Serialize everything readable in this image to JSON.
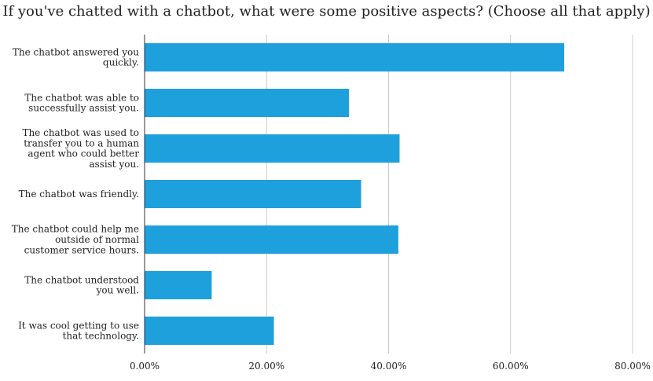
{
  "chart_data": {
    "type": "bar",
    "orientation": "horizontal",
    "title": "If you've chatted with a chatbot, what were some positive aspects? (Choose all that apply)",
    "categories": [
      [
        "The chatbot answered you",
        "quickly."
      ],
      [
        "The chatbot was able to",
        "successfully assist you."
      ],
      [
        "The chatbot was used to",
        "transfer you to a human",
        "agent who could better",
        "assist you."
      ],
      [
        "The chatbot was friendly."
      ],
      [
        "The chatbot could help me",
        "outside of normal",
        "customer service hours."
      ],
      [
        "The chatbot understood",
        "you well."
      ],
      [
        "It was cool getting to use",
        "that technology."
      ]
    ],
    "values": [
      68.8,
      33.5,
      41.8,
      35.5,
      41.6,
      11.0,
      21.2
    ],
    "xlim": [
      0,
      80
    ],
    "ticks": [
      "0.00%",
      "20.00%",
      "40.00%",
      "60.00%",
      "80.00%"
    ],
    "tick_values": [
      0,
      20,
      40,
      60,
      80
    ],
    "bar_color": "#1ea0dd",
    "grid": true
  }
}
